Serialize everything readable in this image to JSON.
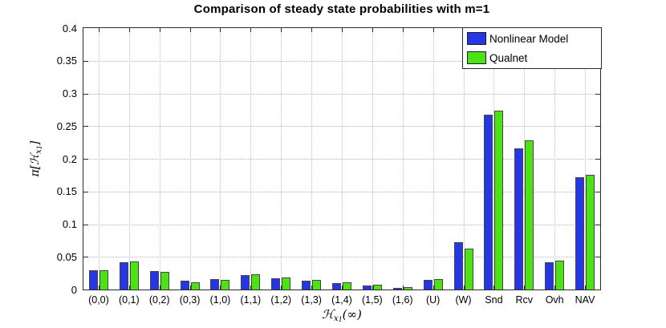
{
  "title": "Comparison of steady state probabilities with m=1",
  "colors": {
    "series_blue": "#2636e2",
    "series_green": "#4ce314",
    "bar_edge": "#454545",
    "grid": "#b4b4b4",
    "axis": "#2b2b2b",
    "background": "#ffffff"
  },
  "legend": {
    "items": [
      {
        "label": "Nonlinear Model",
        "color": "#2636e2"
      },
      {
        "label": "Qualnet",
        "color": "#4ce314"
      }
    ]
  },
  "axes": {
    "ylabel_text": "π[ℋ_x1]",
    "xlabel_text": "ℋ_x1(∞)",
    "ylabel_parts": {
      "pi_open": "π[",
      "h": "ℋ",
      "sub_x": "x",
      "sub_1": "1",
      "close": "]"
    },
    "xlabel_parts": {
      "h": "ℋ",
      "sub_x": "x",
      "sub_1": "1",
      "tail": "(∞)"
    },
    "y_tick_labels": [
      "0",
      "0.05",
      "0.1",
      "0.15",
      "0.2",
      "0.25",
      "0.3",
      "0.35",
      "0.4"
    ]
  },
  "chart_data": {
    "type": "bar",
    "title": "Comparison of steady state probabilities with m=1",
    "xlabel": "ℋ_x1(∞)",
    "ylabel": "π[ℋ_x1]",
    "ylim": [
      0,
      0.4
    ],
    "ytick_step": 0.05,
    "grid": true,
    "legend_position": "top-right",
    "categories": [
      "(0,0)",
      "(0,1)",
      "(0,2)",
      "(0,3)",
      "(1,0)",
      "(1,1)",
      "(1,2)",
      "(1,3)",
      "(1,4)",
      "(1,5)",
      "(1,6)",
      "(U)",
      "(W)",
      "Snd",
      "Rcv",
      "Ovh",
      "NAV"
    ],
    "series": [
      {
        "name": "Nonlinear Model",
        "color": "#2636e2",
        "values": [
          0.03,
          0.042,
          0.028,
          0.013,
          0.016,
          0.022,
          0.017,
          0.013,
          0.01,
          0.006,
          0.003,
          0.015,
          0.073,
          0.267,
          0.216,
          0.042,
          0.172
        ]
      },
      {
        "name": "Qualnet",
        "color": "#4ce314",
        "values": [
          0.03,
          0.043,
          0.027,
          0.011,
          0.015,
          0.023,
          0.019,
          0.015,
          0.011,
          0.007,
          0.004,
          0.016,
          0.062,
          0.274,
          0.228,
          0.044,
          0.176
        ]
      }
    ]
  }
}
